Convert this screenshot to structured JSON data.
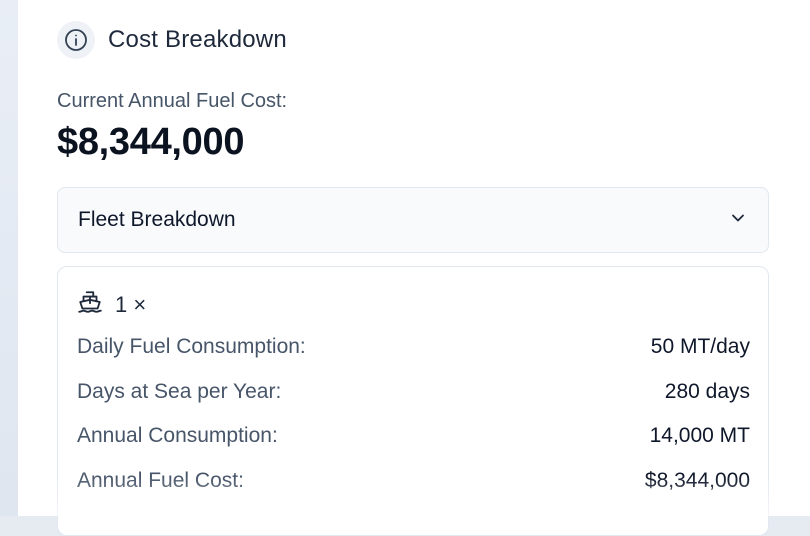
{
  "panel": {
    "title": "Cost Breakdown",
    "icon": "info-icon"
  },
  "summary": {
    "label": "Current Annual Fuel Cost:",
    "value": "$8,344,000"
  },
  "fleet_dropdown": {
    "label": "Fleet Breakdown",
    "icon": "chevron-down-icon",
    "expanded": true
  },
  "vessel": {
    "icon": "ship-icon",
    "count_label": "1 ×",
    "rows": [
      {
        "label": "Daily Fuel Consumption:",
        "value": "50 MT/day"
      },
      {
        "label": "Days at Sea per Year:",
        "value": "280 days"
      },
      {
        "label": "Annual Consumption:",
        "value": "14,000 MT"
      },
      {
        "label": "Annual Fuel Cost:",
        "value": "$8,344,000"
      }
    ]
  }
}
